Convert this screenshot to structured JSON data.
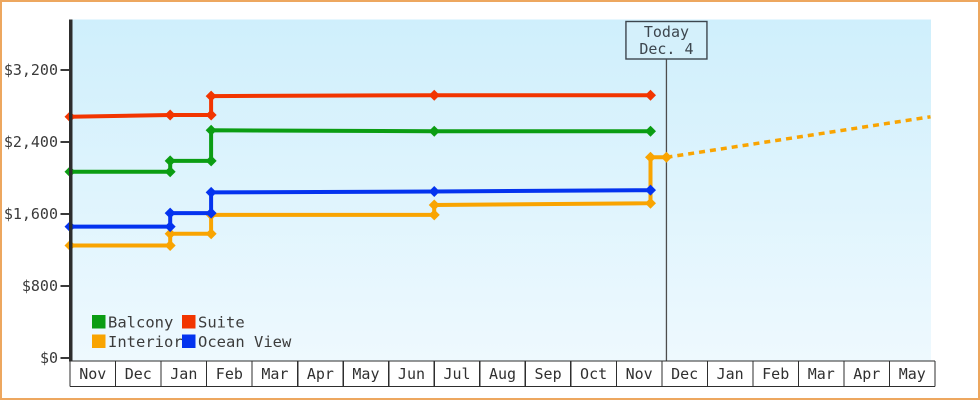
{
  "window": {
    "border_color": "#eda75f",
    "background_color": "#ffffff",
    "plot_gradient_top": "#cfeffc",
    "plot_gradient_bottom": "#eef9fe"
  },
  "chart_data": {
    "type": "line",
    "title": "",
    "description": "Cruise cabin price history by category with projected Interior price",
    "grid": false,
    "x_axis": {
      "months": [
        "Nov",
        "Dec",
        "Jan",
        "Feb",
        "Mar",
        "Apr",
        "May",
        "Jun",
        "Jul",
        "Aug",
        "Sep",
        "Oct",
        "Nov",
        "Dec",
        "Jan",
        "Feb",
        "Mar",
        "Apr",
        "May"
      ]
    },
    "y_axis": {
      "ticks": [
        {
          "label": "$0",
          "value": 0
        },
        {
          "label": "$800",
          "value": 800
        },
        {
          "label": "$1,600",
          "value": 1600
        },
        {
          "label": "$2,400",
          "value": 2400
        },
        {
          "label": "$3,200",
          "value": 3200
        }
      ],
      "range": [
        0,
        3760
      ]
    },
    "today_marker": {
      "label": "Today",
      "date": "Dec. 4",
      "month_index": 13.1
    },
    "series": [
      {
        "name": "Interior",
        "color": "#f9a401",
        "points": [
          {
            "m": 0,
            "price": 1250
          },
          {
            "m": 2.2,
            "price": 1250
          },
          {
            "m": 2.2,
            "price": 1380
          },
          {
            "m": 3.1,
            "price": 1380
          },
          {
            "m": 3.1,
            "price": 1590
          },
          {
            "m": 8,
            "price": 1590
          },
          {
            "m": 8,
            "price": 1700
          },
          {
            "m": 12.75,
            "price": 1720
          },
          {
            "m": 12.75,
            "price": 2230
          },
          {
            "m": 13.1,
            "price": 2230
          }
        ]
      },
      {
        "name": "Ocean View",
        "color": "#0433ef",
        "points": [
          {
            "m": 0,
            "price": 1460
          },
          {
            "m": 2.2,
            "price": 1460
          },
          {
            "m": 2.2,
            "price": 1610
          },
          {
            "m": 3.1,
            "price": 1610
          },
          {
            "m": 3.1,
            "price": 1840
          },
          {
            "m": 8,
            "price": 1850
          },
          {
            "m": 12.75,
            "price": 1865
          }
        ]
      },
      {
        "name": "Balcony",
        "color": "#0b9d13",
        "points": [
          {
            "m": 0,
            "price": 2070
          },
          {
            "m": 2.2,
            "price": 2070
          },
          {
            "m": 2.2,
            "price": 2190
          },
          {
            "m": 3.1,
            "price": 2190
          },
          {
            "m": 3.1,
            "price": 2530
          },
          {
            "m": 8,
            "price": 2520
          },
          {
            "m": 12.75,
            "price": 2520
          }
        ]
      },
      {
        "name": "Suite",
        "color": "#f23500",
        "points": [
          {
            "m": 0,
            "price": 2680
          },
          {
            "m": 2.2,
            "price": 2700
          },
          {
            "m": 3.1,
            "price": 2700
          },
          {
            "m": 3.1,
            "price": 2910
          },
          {
            "m": 8,
            "price": 2920
          },
          {
            "m": 12.75,
            "price": 2920
          }
        ]
      }
    ],
    "projection": {
      "series": "Interior",
      "style": "dashed",
      "color": "#f9a401",
      "points": [
        {
          "m": 13.1,
          "price": 2230
        },
        {
          "m": 18.9,
          "price": 2680
        }
      ]
    },
    "legend": {
      "position": "bottom-left",
      "items": [
        {
          "label": "Balcony"
        },
        {
          "label": "Suite"
        },
        {
          "label": "Interior"
        },
        {
          "label": "Ocean View"
        }
      ]
    }
  }
}
